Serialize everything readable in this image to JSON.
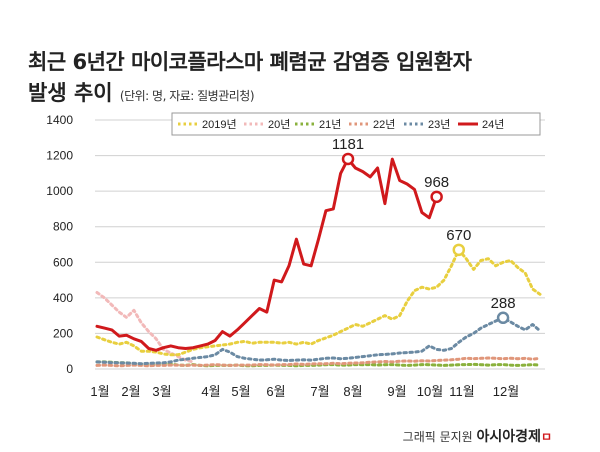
{
  "title": "최근 6년간 마이코플라스마 폐렴균 감염증 입원환자",
  "title_line2": "발생 추이",
  "subtitle": "(단위: 명, 자료: 질병관리청)",
  "credit": "그래픽 문지원",
  "brand": "아시아경제",
  "chart_data": {
    "type": "line",
    "title": "최근 6년간 마이코플라스마 폐렴균 감염증 입원환자 발생 추이",
    "xlabel": "",
    "ylabel": "",
    "ylim": [
      0,
      1400
    ],
    "yticks": [
      0,
      200,
      400,
      600,
      800,
      1000,
      1200,
      1400
    ],
    "month_labels": [
      "1월",
      "2월",
      "3월",
      "4월",
      "5월",
      "6월",
      "7월",
      "8월",
      "9월",
      "10월",
      "11월",
      "12월"
    ],
    "x_unit": "week",
    "legend_position": "top-right",
    "grid": true,
    "series": [
      {
        "name": "2019년",
        "color": "#e8cf3f",
        "style": "dotted",
        "values": [
          180,
          165,
          150,
          140,
          150,
          130,
          100,
          100,
          95,
          85,
          80,
          80,
          95,
          110,
          120,
          125,
          130,
          135,
          140,
          150,
          155,
          145,
          150,
          150,
          150,
          145,
          150,
          140,
          150,
          140,
          160,
          175,
          190,
          210,
          230,
          250,
          240,
          260,
          280,
          300,
          280,
          300,
          380,
          440,
          460,
          450,
          460,
          500,
          580,
          670,
          620,
          560,
          610,
          620,
          580,
          600,
          610,
          570,
          540,
          450,
          420
        ]
      },
      {
        "name": "20년",
        "color": "#f2b9b9",
        "style": "dotted",
        "values": [
          430,
          400,
          360,
          320,
          290,
          330,
          260,
          210,
          170,
          110,
          90,
          70,
          50,
          40
        ]
      },
      {
        "name": "21년",
        "color": "#8ab13c",
        "style": "dotted",
        "values": [
          40,
          40,
          38,
          35,
          35,
          30,
          28,
          25,
          25,
          30,
          28,
          22,
          20,
          25,
          20,
          18,
          20,
          20,
          20,
          22,
          18,
          18,
          20,
          20,
          22,
          20,
          20,
          18,
          20,
          20,
          22,
          24,
          25,
          22,
          22,
          25,
          24,
          25,
          22,
          24,
          25,
          22,
          20,
          22,
          25,
          24,
          22,
          20,
          22,
          24,
          25,
          26,
          24,
          22,
          24,
          25,
          22,
          20,
          22,
          24,
          22
        ]
      },
      {
        "name": "22년",
        "color": "#e0967a",
        "style": "dotted",
        "values": [
          20,
          22,
          20,
          18,
          20,
          22,
          20,
          18,
          20,
          20,
          22,
          22,
          20,
          22,
          20,
          22,
          25,
          22,
          20,
          22,
          22,
          22,
          25,
          24,
          22,
          25,
          25,
          28,
          26,
          28,
          30,
          30,
          32,
          30,
          32,
          34,
          35,
          38,
          40,
          42,
          40,
          44,
          45,
          44,
          46,
          45,
          48,
          50,
          52,
          55,
          60,
          58,
          60,
          62,
          60,
          58,
          60,
          58,
          60,
          55,
          60
        ]
      },
      {
        "name": "23년",
        "color": "#6b8aa3",
        "style": "dotted",
        "values": [
          40,
          38,
          36,
          35,
          34,
          32,
          30,
          32,
          34,
          35,
          40,
          50,
          55,
          60,
          65,
          70,
          80,
          110,
          95,
          70,
          60,
          55,
          50,
          52,
          55,
          50,
          48,
          50,
          52,
          50,
          55,
          60,
          62,
          58,
          60,
          65,
          70,
          75,
          80,
          82,
          85,
          90,
          92,
          95,
          100,
          130,
          110,
          105,
          115,
          150,
          180,
          200,
          230,
          250,
          270,
          288,
          265,
          240,
          220,
          250,
          215
        ]
      },
      {
        "name": "24년",
        "color": "#d0191c",
        "style": "solid",
        "values": [
          240,
          230,
          220,
          185,
          190,
          170,
          155,
          115,
          105,
          120,
          130,
          120,
          115,
          120,
          130,
          140,
          160,
          210,
          185,
          220,
          260,
          300,
          340,
          320,
          500,
          490,
          580,
          730,
          590,
          580,
          730,
          890,
          900,
          1100,
          1181,
          1130,
          1110,
          1080,
          1130,
          930,
          1180,
          1060,
          1040,
          1010,
          880,
          850,
          968
        ]
      }
    ],
    "annotations": [
      {
        "series": "24년",
        "label": "1181",
        "week": 34,
        "value": 1181
      },
      {
        "series": "24년",
        "label": "968",
        "week": 46,
        "value": 968
      },
      {
        "series": "2019년",
        "label": "670",
        "week": 49,
        "value": 670
      },
      {
        "series": "23년",
        "label": "288",
        "week": 55,
        "value": 288
      }
    ]
  }
}
